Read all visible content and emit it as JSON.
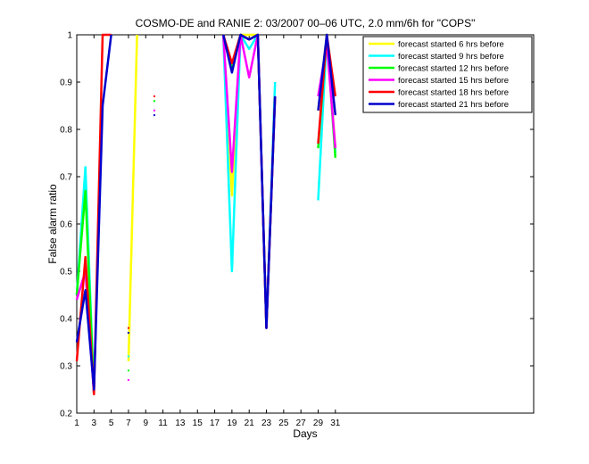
{
  "chart_data": {
    "type": "line",
    "title": "COSMO-DE and RANIE 2: 03/2007 00–06 UTC, 2.0 mm/6h for \"COPS\"",
    "xlabel": "Days",
    "ylabel": "False alarm ratio",
    "xlim": [
      1,
      54
    ],
    "ylim": [
      0.2,
      1.0
    ],
    "xticks": [
      1,
      3,
      5,
      7,
      9,
      11,
      13,
      15,
      17,
      19,
      21,
      23,
      25,
      27,
      29,
      31
    ],
    "yticks": [
      0.2,
      0.3,
      0.4,
      0.5,
      0.6,
      0.7,
      0.8,
      0.9,
      1.0
    ],
    "grid": false,
    "legend_position": "top-right",
    "series": [
      {
        "name": "forecast started  6 hrs before",
        "color": "#ffff00",
        "values": [
          [
            7,
            0.31
          ],
          [
            8,
            1.0
          ],
          null,
          [
            10,
            0.86
          ],
          null,
          [
            18,
            1.0
          ],
          [
            19,
            0.66
          ],
          [
            20,
            1.0
          ],
          [
            21,
            1.0
          ],
          [
            22,
            1.0
          ],
          null,
          [
            29,
            0.84
          ],
          [
            30,
            1.0
          ],
          [
            31,
            0.76
          ]
        ]
      },
      {
        "name": "forecast started  9 hrs before",
        "color": "#00ffff",
        "values": [
          [
            1,
            0.45
          ],
          [
            2,
            0.72
          ],
          [
            3,
            0.24
          ],
          null,
          [
            7,
            0.32
          ],
          null,
          [
            10,
            0.86
          ],
          null,
          [
            18,
            1.0
          ],
          [
            19,
            0.5
          ],
          [
            20,
            1.0
          ],
          [
            21,
            0.97
          ],
          [
            22,
            1.0
          ],
          [
            23,
            0.38
          ],
          [
            24,
            0.9
          ],
          null,
          [
            29,
            0.65
          ],
          [
            30,
            1.0
          ],
          [
            31,
            0.75
          ]
        ]
      },
      {
        "name": "forecast started 12 hrs before",
        "color": "#00ff00",
        "values": [
          [
            1,
            0.45
          ],
          [
            2,
            0.67
          ],
          [
            3,
            0.24
          ],
          null,
          [
            7,
            0.29
          ],
          null,
          [
            10,
            0.86
          ],
          null,
          [
            18,
            1.0
          ],
          [
            19,
            0.93
          ],
          [
            20,
            1.0
          ],
          [
            21,
            0.99
          ],
          [
            22,
            1.0
          ],
          [
            23,
            0.38
          ],
          [
            24,
            0.87
          ],
          null,
          [
            29,
            0.76
          ],
          [
            30,
            1.0
          ],
          [
            31,
            0.74
          ]
        ]
      },
      {
        "name": "forecast started 15 hrs before",
        "color": "#ff00ff",
        "values": [
          [
            1,
            0.44
          ],
          [
            2,
            0.5
          ],
          [
            3,
            0.24
          ],
          null,
          [
            7,
            0.27
          ],
          null,
          [
            10,
            0.84
          ],
          null,
          [
            18,
            1.0
          ],
          [
            19,
            0.71
          ],
          [
            20,
            1.0
          ],
          [
            21,
            0.91
          ],
          [
            22,
            1.0
          ],
          [
            23,
            0.38
          ],
          [
            24,
            0.87
          ],
          null,
          [
            29,
            0.87
          ],
          [
            30,
            0.98
          ],
          [
            31,
            0.76
          ]
        ]
      },
      {
        "name": "forecast started 18 hrs before",
        "color": "#ff0000",
        "values": [
          [
            1,
            0.31
          ],
          [
            2,
            0.53
          ],
          [
            3,
            0.24
          ],
          [
            4,
            1.0
          ],
          [
            5,
            1.0
          ],
          null,
          [
            7,
            0.38
          ],
          null,
          [
            10,
            0.87
          ],
          null,
          [
            18,
            1.0
          ],
          [
            19,
            0.94
          ],
          [
            20,
            1.0
          ],
          [
            21,
            0.99
          ],
          [
            22,
            1.0
          ],
          [
            23,
            0.38
          ],
          [
            24,
            0.87
          ],
          null,
          [
            29,
            0.77
          ],
          [
            30,
            1.0
          ],
          [
            31,
            0.87
          ]
        ]
      },
      {
        "name": "forecast started 21 hrs before",
        "color": "#0000cc",
        "values": [
          [
            1,
            0.35
          ],
          [
            2,
            0.46
          ],
          [
            3,
            0.25
          ],
          [
            4,
            0.85
          ],
          [
            5,
            1.0
          ],
          null,
          [
            7,
            0.37
          ],
          null,
          [
            10,
            0.83
          ],
          null,
          [
            18,
            1.0
          ],
          [
            19,
            0.92
          ],
          [
            20,
            1.0
          ],
          [
            21,
            0.99
          ],
          [
            22,
            1.0
          ],
          [
            23,
            0.38
          ],
          [
            24,
            0.87
          ],
          null,
          [
            29,
            0.84
          ],
          [
            30,
            1.0
          ],
          [
            31,
            0.83
          ]
        ]
      }
    ]
  }
}
